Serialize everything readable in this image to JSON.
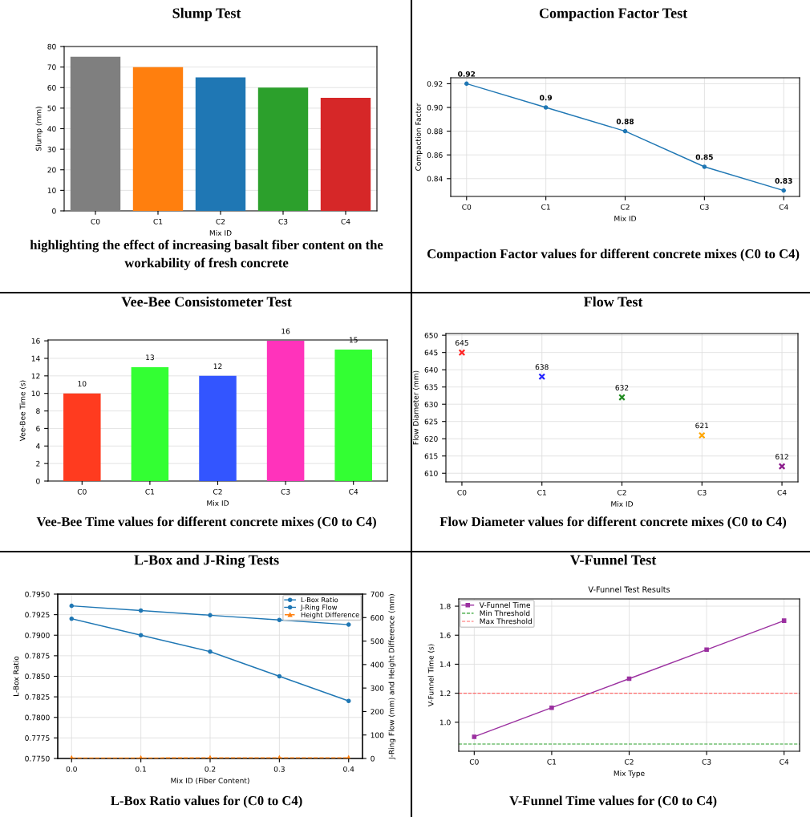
{
  "chart_data": [
    {
      "type": "bar",
      "title": "Slump Test",
      "xlabel": "Mix ID",
      "ylabel": "Slump (mm)",
      "categories": [
        "C0",
        "C1",
        "C2",
        "C3",
        "C4"
      ],
      "values": [
        75,
        70,
        65,
        60,
        55
      ],
      "colors": [
        "#7f7f7f",
        "#ff7f0e",
        "#1f77b4",
        "#2ca02c",
        "#d62728"
      ],
      "ylim": [
        0,
        80
      ],
      "yticks": [
        0,
        10,
        20,
        30,
        40,
        50,
        60,
        70,
        80
      ],
      "grid": "y",
      "annotations": [
        "highlighting the effect of increasing basalt fiber content on the workability of fresh concrete"
      ]
    },
    {
      "type": "line",
      "title": "Compaction Factor Test",
      "xlabel": "Mix ID",
      "ylabel": "Compaction Factor",
      "categories": [
        "C0",
        "C1",
        "C2",
        "C3",
        "C4"
      ],
      "values": [
        0.92,
        0.9,
        0.88,
        0.85,
        0.83
      ],
      "color": "#1f77b4",
      "marker": "circle",
      "data_labels": true,
      "ylim": [
        0.825,
        0.925
      ],
      "yticks": [
        {
          "value": 0.84,
          "label": "0.84"
        },
        {
          "value": 0.86,
          "label": "0.86"
        },
        {
          "value": 0.88,
          "label": "0.88"
        },
        {
          "value": 0.9,
          "label": "0.90"
        },
        {
          "value": 0.92,
          "label": "0.92"
        }
      ],
      "grid": true,
      "annotations": [
        "Compaction Factor values for different concrete mixes (C0 to C4)"
      ]
    },
    {
      "type": "bar",
      "title": "Vee-Bee Consistometer Test",
      "xlabel": "Mix ID",
      "ylabel": "Vee-Bee Time (s)",
      "categories": [
        "C0",
        "C1",
        "C2",
        "C3",
        "C4"
      ],
      "values": [
        10,
        13,
        12,
        16,
        15
      ],
      "colors": [
        "#ff3b1f",
        "#33ff33",
        "#3355ff",
        "#ff33bb",
        "#33ff33"
      ],
      "data_labels": true,
      "ylim": [
        0,
        16.1
      ],
      "yticks": [
        0,
        2,
        4,
        6,
        8,
        10,
        12,
        14,
        16
      ],
      "grid": "y",
      "annotations": [
        "Vee-Bee Time values for different concrete mixes (C0 to C4)"
      ]
    },
    {
      "type": "scatter",
      "title": "Flow Test",
      "xlabel": "Mix ID",
      "ylabel": "Flow Diameter (mm)",
      "categories": [
        "C0",
        "C1",
        "C2",
        "C3",
        "C4"
      ],
      "values": [
        645,
        638,
        632,
        621,
        612
      ],
      "colors": [
        "#ff2222",
        "#2222ff",
        "#228b22",
        "#ffa500",
        "#8b1a8b"
      ],
      "marker": "cross",
      "data_labels": true,
      "ylim": [
        607.5,
        650.5
      ],
      "yticks": [
        610,
        615,
        620,
        625,
        630,
        635,
        640,
        645,
        650
      ],
      "grid": true,
      "annotations": [
        "Flow Diameter values for different concrete mixes (C0 to C4)"
      ]
    },
    {
      "type": "line",
      "title": "L-Box and J-Ring Tests",
      "xlabel": "Mix ID (Fiber Content)",
      "ylabel": "L-Box Ratio",
      "y2label": "J-Ring Flow (mm) and Height Difference (mm)",
      "x": [
        0.0,
        0.1,
        0.2,
        0.3,
        0.4
      ],
      "xlim": [
        -0.02,
        0.42
      ],
      "xticks": [
        {
          "value": 0.0,
          "label": "0.0"
        },
        {
          "value": 0.1,
          "label": "0.1"
        },
        {
          "value": 0.2,
          "label": "0.2"
        },
        {
          "value": 0.3,
          "label": "0.3"
        },
        {
          "value": 0.4,
          "label": "0.4"
        }
      ],
      "series": [
        {
          "name": "L-Box Ratio",
          "color": "#1f77b4",
          "values": [
            0.792,
            0.79,
            0.788,
            0.785,
            0.782
          ],
          "marker": "circle",
          "line_style": "solid"
        },
        {
          "name": "J-Ring Flow",
          "color": "#1f77b4",
          "values": [
            650,
            630,
            610,
            590,
            570
          ],
          "axis": "y2",
          "marker": "circle",
          "line_style": "solid"
        },
        {
          "name": "Height Difference",
          "color": "#ff7f0e",
          "values": [
            2,
            2,
            3,
            3,
            3
          ],
          "axis": "y2",
          "marker": "triangle",
          "line_style": "dashed"
        }
      ],
      "ylim": [
        0.775,
        0.795
      ],
      "yticks": [
        {
          "value": 0.775,
          "label": "0.7750"
        },
        {
          "value": 0.7775,
          "label": "0.7775"
        },
        {
          "value": 0.78,
          "label": "0.7800"
        },
        {
          "value": 0.7825,
          "label": "0.7825"
        },
        {
          "value": 0.785,
          "label": "0.7850"
        },
        {
          "value": 0.7875,
          "label": "0.7875"
        },
        {
          "value": 0.79,
          "label": "0.7900"
        },
        {
          "value": 0.7925,
          "label": "0.7925"
        },
        {
          "value": 0.795,
          "label": "0.7950"
        }
      ],
      "y2lim": [
        0,
        700
      ],
      "y2ticks": [
        0,
        100,
        200,
        300,
        400,
        500,
        600,
        700
      ],
      "grid": true,
      "legend": "top right",
      "annotations": [
        "L-Box Ratio values for (C0 to C4)"
      ]
    },
    {
      "type": "line",
      "title": "V-Funnel Test",
      "subtitle": "V-Funnel Test Results",
      "xlabel": "Mix Type",
      "ylabel": "V-Funnel Time (s)",
      "categories": [
        "C0",
        "C1",
        "C2",
        "C3",
        "C4"
      ],
      "series": [
        {
          "name": "V-Funnel Time",
          "color": "#9b30a0",
          "values": [
            0.9,
            1.1,
            1.3,
            1.5,
            1.7
          ],
          "marker": "square",
          "line_style": "solid"
        }
      ],
      "ref_lines": [
        {
          "axis": "y",
          "value": 0.85,
          "label": "Min Threshold",
          "color": "#2ca02c",
          "line_style": "dashed"
        },
        {
          "axis": "y",
          "value": 1.2,
          "label": "Max Threshold",
          "color": "#ff6666",
          "line_style": "dashed"
        }
      ],
      "ylim": [
        0.8,
        1.85
      ],
      "yticks": [
        {
          "value": 1.0,
          "label": "1.0"
        },
        {
          "value": 1.2,
          "label": "1.2"
        },
        {
          "value": 1.4,
          "label": "1.4"
        },
        {
          "value": 1.6,
          "label": "1.6"
        },
        {
          "value": 1.8,
          "label": "1.8"
        }
      ],
      "grid": true,
      "legend": "top left",
      "annotations": [
        "V-Funnel Time values for (C0 to C4)"
      ]
    }
  ]
}
